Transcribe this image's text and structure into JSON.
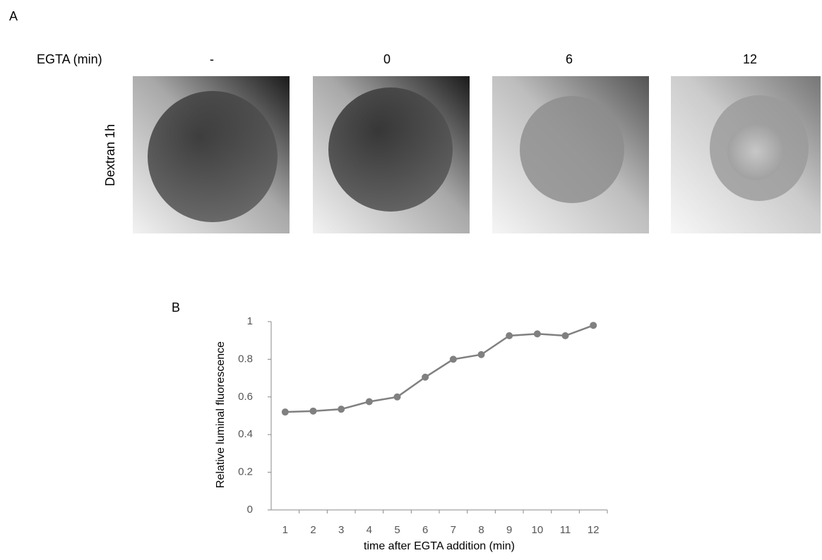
{
  "figure": {
    "panel_a_label": "A",
    "panel_b_label": "B",
    "row_header": "EGTA (min)",
    "columns": [
      "-",
      "0",
      "6",
      "12"
    ],
    "row_label": "Dextran 1h"
  },
  "chart_data": {
    "type": "line",
    "x_label": "time after EGTA addition (min)",
    "y_label": "Relative luminal fluorescence",
    "categories": [
      "1",
      "2",
      "3",
      "4",
      "5",
      "6",
      "7",
      "8",
      "9",
      "10",
      "11",
      "12"
    ],
    "values": [
      0.52,
      0.525,
      0.535,
      0.575,
      0.6,
      0.705,
      0.8,
      0.825,
      0.925,
      0.935,
      0.925,
      0.98
    ],
    "color": "#808080",
    "ylim": [
      0,
      1
    ],
    "yticks": [
      0,
      0.2,
      0.4,
      0.6,
      0.8,
      1
    ]
  }
}
